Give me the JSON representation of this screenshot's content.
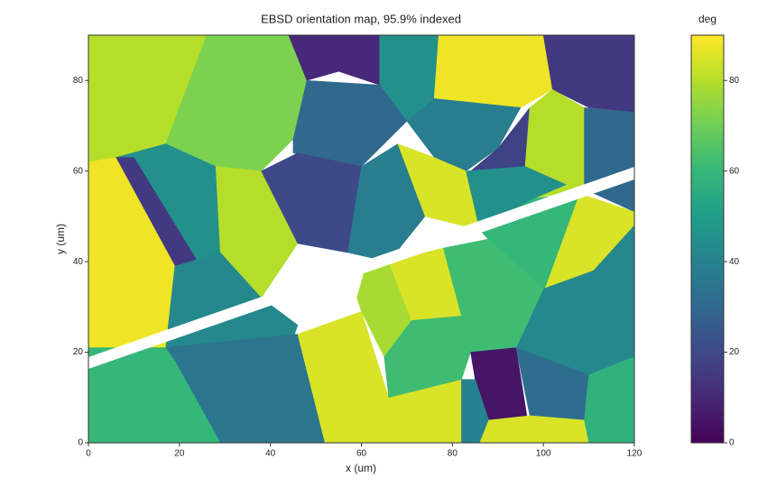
{
  "chart_data": {
    "type": "heatmap",
    "title": "EBSD orientation map, 95.9% indexed",
    "xlabel": "x (um)",
    "ylabel": "y (um)",
    "xlim": [
      0,
      120
    ],
    "ylim": [
      0,
      90
    ],
    "xticks": [
      0,
      20,
      40,
      60,
      80,
      100,
      120
    ],
    "yticks": [
      0,
      20,
      40,
      60,
      80
    ],
    "colormap": "viridis",
    "colorbar_label": "deg",
    "clim": [
      0,
      90
    ],
    "cticks": [
      0,
      20,
      40,
      60,
      80
    ],
    "grains": [
      {
        "x": [
          0,
          26,
          17,
          6,
          0
        ],
        "y": [
          90,
          90,
          66,
          63,
          62
        ],
        "value": 80
      },
      {
        "x": [
          26,
          44,
          48,
          45,
          38,
          28,
          17
        ],
        "y": [
          90,
          90,
          80,
          67,
          60,
          61,
          66
        ],
        "value": 72
      },
      {
        "x": [
          44,
          64,
          64,
          55,
          48
        ],
        "y": [
          90,
          90,
          79,
          82,
          80
        ],
        "value": 10
      },
      {
        "x": [
          64,
          77,
          76,
          70,
          64
        ],
        "y": [
          90,
          90,
          76,
          71,
          78
        ],
        "value": 45
      },
      {
        "x": [
          77,
          100,
          102,
          95,
          76
        ],
        "y": [
          90,
          90,
          78,
          74,
          76
        ],
        "value": 88
      },
      {
        "x": [
          100,
          120,
          120,
          110,
          102
        ],
        "y": [
          90,
          90,
          73,
          74,
          78
        ],
        "value": 15
      },
      {
        "x": [
          48,
          64,
          70,
          60,
          45,
          45
        ],
        "y": [
          80,
          79,
          71,
          61,
          64,
          67
        ],
        "value": 30
      },
      {
        "x": [
          70,
          76,
          95,
          90,
          83,
          76
        ],
        "y": [
          71,
          76,
          74,
          65,
          60,
          63
        ],
        "value": 38
      },
      {
        "x": [
          90,
          97,
          96,
          84
        ],
        "y": [
          65,
          74,
          61,
          60
        ],
        "value": 18
      },
      {
        "x": [
          97,
          102,
          109,
          109,
          98,
          96
        ],
        "y": [
          74,
          78,
          74,
          56,
          54,
          61
        ],
        "value": 80
      },
      {
        "x": [
          109,
          120,
          120,
          109
        ],
        "y": [
          74,
          73,
          51,
          56
        ],
        "value": 30
      },
      {
        "x": [
          6,
          17,
          28,
          29,
          24,
          10
        ],
        "y": [
          63,
          66,
          61,
          42,
          40,
          58
        ],
        "value": 45
      },
      {
        "x": [
          6,
          10,
          24,
          19
        ],
        "y": [
          63,
          63,
          40,
          39
        ],
        "value": 15
      },
      {
        "x": [
          0,
          6,
          19,
          17,
          0
        ],
        "y": [
          62,
          63,
          39,
          21,
          21
        ],
        "value": 88
      },
      {
        "x": [
          28,
          38,
          46,
          38,
          29
        ],
        "y": [
          61,
          60,
          44,
          32,
          42
        ],
        "value": 80
      },
      {
        "x": [
          38,
          46,
          60,
          57,
          46
        ],
        "y": [
          60,
          64,
          61,
          42,
          44
        ],
        "value": 20
      },
      {
        "x": [
          60,
          68,
          74,
          66,
          57
        ],
        "y": [
          61,
          66,
          50,
          40,
          42
        ],
        "value": 38
      },
      {
        "x": [
          68,
          76,
          83,
          86,
          74
        ],
        "y": [
          66,
          63,
          60,
          47,
          50
        ],
        "value": 85
      },
      {
        "x": [
          83,
          96,
          105,
          98,
          86
        ],
        "y": [
          60,
          61,
          57,
          54,
          47
        ],
        "value": 45
      },
      {
        "x": [
          86,
          98,
          108,
          100,
          95
        ],
        "y": [
          47,
          54,
          55,
          33,
          37
        ],
        "value": 60
      },
      {
        "x": [
          108,
          120,
          120,
          111,
          100
        ],
        "y": [
          55,
          51,
          48,
          38,
          33
        ],
        "value": 85
      },
      {
        "x": [
          100,
          111,
          120,
          120,
          110,
          94
        ],
        "y": [
          34,
          38,
          48,
          19,
          15,
          21
        ],
        "value": 42
      },
      {
        "x": [
          17,
          19,
          29,
          38,
          46,
          45,
          19
        ],
        "y": [
          21,
          39,
          42,
          32,
          26,
          23,
          20
        ],
        "value": 42
      },
      {
        "x": [
          17,
          46,
          52,
          29,
          19
        ],
        "y": [
          21,
          24,
          0,
          0,
          18
        ],
        "value": 35
      },
      {
        "x": [
          0,
          17,
          19,
          29,
          0
        ],
        "y": [
          21,
          21,
          18,
          0,
          0
        ],
        "value": 60
      },
      {
        "x": [
          46,
          60,
          66,
          82,
          82,
          52
        ],
        "y": [
          24,
          29,
          10,
          14,
          0,
          0
        ],
        "value": 85
      },
      {
        "x": [
          59,
          61,
          66,
          71,
          65,
          60
        ],
        "y": [
          32,
          39,
          40,
          27,
          19,
          29
        ],
        "value": 78
      },
      {
        "x": [
          66,
          78,
          82,
          71
        ],
        "y": [
          40,
          43,
          28,
          27
        ],
        "value": 85
      },
      {
        "x": [
          78,
          88,
          100,
          94,
          84,
          82
        ],
        "y": [
          43,
          45,
          34,
          21,
          20,
          28
        ],
        "value": 62
      },
      {
        "x": [
          71,
          82,
          84,
          82,
          66,
          65
        ],
        "y": [
          27,
          28,
          20,
          14,
          10,
          19
        ],
        "value": 62
      },
      {
        "x": [
          84,
          94,
          97,
          88,
          85
        ],
        "y": [
          20,
          21,
          2,
          5,
          14
        ],
        "value": 5
      },
      {
        "x": [
          94,
          110,
          109,
          97
        ],
        "y": [
          21,
          15,
          5,
          6
        ],
        "value": 32
      },
      {
        "x": [
          82,
          85,
          88,
          86,
          82
        ],
        "y": [
          14,
          14,
          5,
          0,
          0
        ],
        "value": 40
      },
      {
        "x": [
          88,
          97,
          109,
          110,
          86
        ],
        "y": [
          5,
          6,
          5,
          0,
          0
        ],
        "value": 85
      },
      {
        "x": [
          110,
          120,
          120,
          110,
          109
        ],
        "y": [
          15,
          19,
          0,
          0,
          5
        ],
        "value": 58
      }
    ]
  }
}
